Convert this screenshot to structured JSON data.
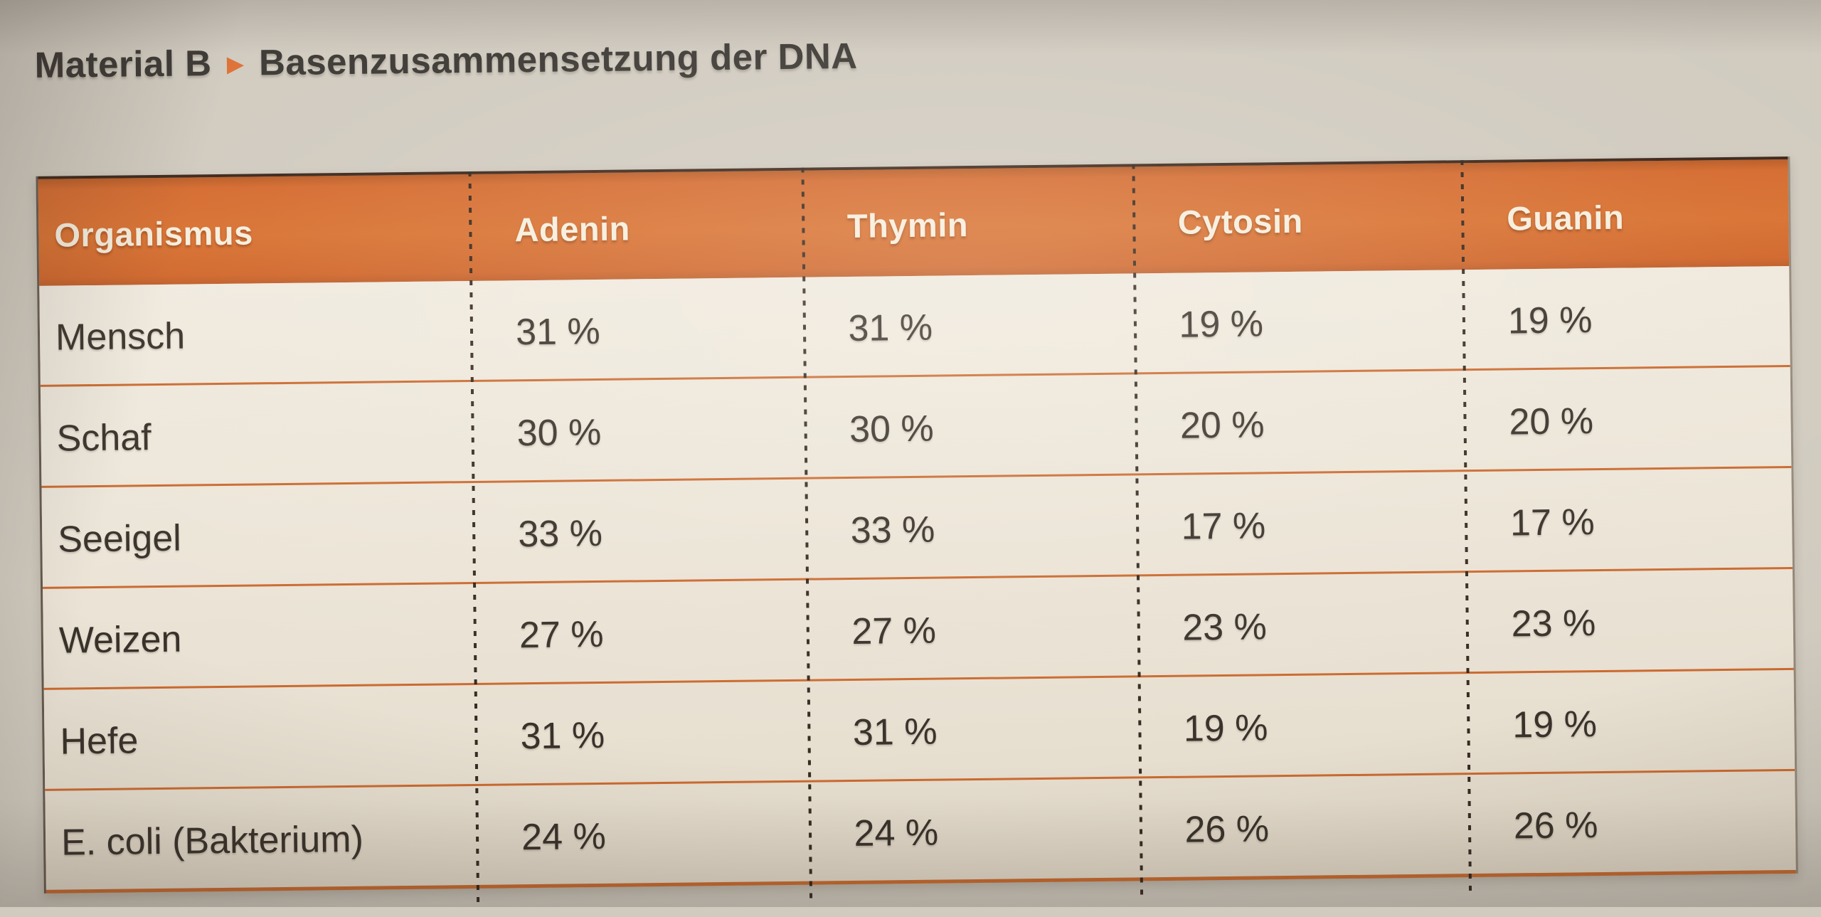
{
  "page": {
    "material_label": "Material B",
    "arrow_icon": "▸",
    "title": "Basenzusammensetzung der DNA"
  },
  "table": {
    "headers": [
      "Organismus",
      "Adenin",
      "Thymin",
      "Cytosin",
      "Guanin"
    ],
    "rows": [
      {
        "cells": [
          "Mensch",
          "31 %",
          "31 %",
          "19 %",
          "19 %"
        ]
      },
      {
        "cells": [
          "Schaf",
          "30 %",
          "30 %",
          "20 %",
          "20 %"
        ]
      },
      {
        "cells": [
          "Seeigel",
          "33 %",
          "33 %",
          "17 %",
          "17 %"
        ]
      },
      {
        "cells": [
          "Weizen",
          "27 %",
          "27 %",
          "23 %",
          "23 %"
        ]
      },
      {
        "cells": [
          "Hefe",
          "31 %",
          "31 %",
          "19 %",
          "19 %"
        ]
      },
      {
        "cells": [
          "E. coli (Bakterium)",
          "24 %",
          "24 %",
          "26 %",
          "26 %"
        ]
      }
    ]
  },
  "chart_data": {
    "type": "table",
    "title": "Basenzusammensetzung der DNA",
    "columns": [
      "Organismus",
      "Adenin",
      "Thymin",
      "Cytosin",
      "Guanin"
    ],
    "unit": "%",
    "rows": [
      [
        "Mensch",
        31,
        31,
        19,
        19
      ],
      [
        "Schaf",
        30,
        30,
        20,
        20
      ],
      [
        "Seeigel",
        33,
        33,
        17,
        17
      ],
      [
        "Weizen",
        27,
        27,
        23,
        23
      ],
      [
        "Hefe",
        31,
        31,
        19,
        19
      ],
      [
        "E. coli (Bakterium)",
        24,
        24,
        26,
        26
      ]
    ]
  },
  "colors": {
    "header_background": "#d4692d",
    "header_text": "#f6eedd",
    "row_separator": "#cb6a2f",
    "table_background": "#ece5d7",
    "page_background": "#d0cabf",
    "divider_dots": "#2e241c",
    "body_text": "#38322b",
    "title_text": "#3a3632",
    "arrow_color": "#dd6f33"
  }
}
